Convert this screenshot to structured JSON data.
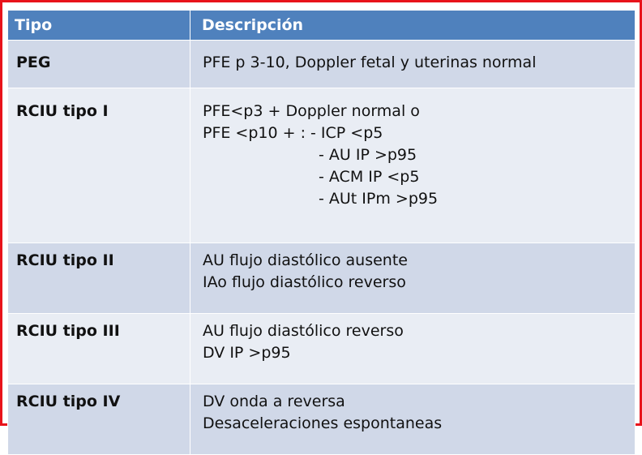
{
  "table": {
    "headers": [
      "Tipo",
      "Descripción"
    ],
    "rows": [
      {
        "tipo": "PEG",
        "lines": [
          "PFE p 3-10, Doppler fetal y uterinas normal"
        ]
      },
      {
        "tipo": "RCIU tipo I",
        "lines": [
          "PFE<p3 + Doppler normal o",
          "PFE <p10 + : - ICP <p5",
          "- AU IP >p95",
          "- ACM IP <p5",
          "- AUt IPm >p95"
        ]
      },
      {
        "tipo": "RCIU tipo II",
        "lines": [
          "AU flujo diastólico ausente",
          "IAo flujo diastólico reverso"
        ]
      },
      {
        "tipo": "RCIU tipo III",
        "lines": [
          "AU flujo diastólico reverso",
          "DV IP >p95"
        ]
      },
      {
        "tipo": "RCIU tipo IV",
        "lines": [
          "DV onda a reversa",
          "Desaceleraciones espontaneas"
        ]
      }
    ]
  },
  "colors": {
    "frame_border": "#e8131b",
    "header_bg": "#4f81bd",
    "row_odd_bg": "#d0d8e8",
    "row_even_bg": "#e9edf4"
  }
}
